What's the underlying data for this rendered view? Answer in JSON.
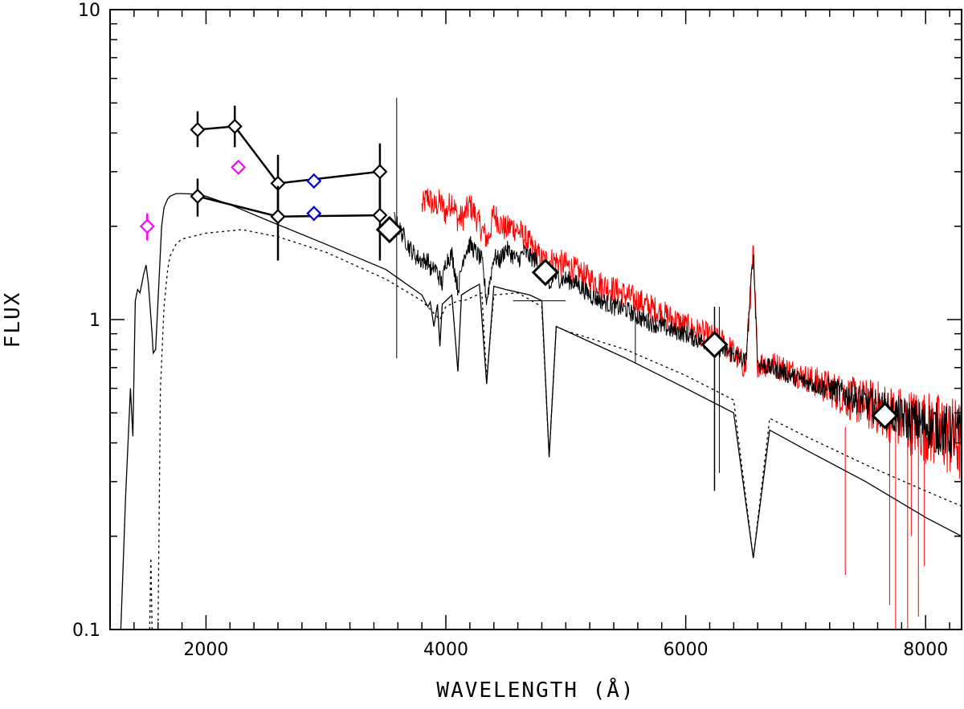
{
  "chart_data": {
    "type": "line",
    "title": "",
    "xlabel": "WAVELENGTH (Å)",
    "ylabel": "FLUX",
    "xlim": [
      1200,
      8300
    ],
    "ylim": [
      0.1,
      10
    ],
    "yscale": "log",
    "grid": false,
    "x_ticks": [
      2000,
      4000,
      6000,
      8000
    ],
    "y_ticks": [
      0.1,
      1,
      10
    ],
    "y_tick_labels": [
      "0.1",
      "1",
      "10"
    ],
    "colors": {
      "axis": "#000000",
      "black_series": "#000000",
      "red_series": "#ff0000",
      "magenta_points": "#ff00ff",
      "blue_points": "#0000cc"
    },
    "series": [
      {
        "name": "model-solid",
        "style": "solid",
        "x": [
          1290,
          1330,
          1370,
          1390,
          1410,
          1430,
          1450,
          1480,
          1500,
          1520,
          1550,
          1560,
          1580,
          1600,
          1630,
          1650,
          1680,
          1700,
          1750,
          1800,
          1900,
          2000,
          2200,
          2500,
          3000,
          3500,
          3800,
          3850,
          3870,
          3900,
          3930,
          3950,
          3970,
          4000,
          4050,
          4100,
          4130,
          4200,
          4280,
          4340,
          4400,
          4500,
          4700,
          4800,
          4861,
          4920,
          5000,
          5500,
          6000,
          6400,
          6563,
          6700,
          7000,
          7500,
          8000,
          8300
        ],
        "y": [
          0.1,
          0.27,
          0.6,
          0.42,
          1.15,
          1.25,
          1.22,
          1.4,
          1.5,
          1.3,
          0.9,
          0.78,
          0.8,
          1.15,
          2.0,
          2.3,
          2.45,
          2.5,
          2.55,
          2.55,
          2.54,
          2.5,
          2.35,
          2.1,
          1.75,
          1.45,
          1.2,
          1.1,
          1.14,
          0.95,
          1.12,
          0.82,
          1.12,
          1.15,
          1.2,
          0.68,
          1.2,
          1.25,
          1.3,
          0.62,
          1.28,
          1.25,
          1.2,
          1.15,
          0.36,
          0.95,
          0.92,
          0.75,
          0.6,
          0.5,
          0.17,
          0.44,
          0.38,
          0.3,
          0.23,
          0.2
        ]
      },
      {
        "name": "model-dotted",
        "style": "dotted",
        "x": [
          1530,
          1540,
          1550,
          1560,
          1575,
          1600,
          1620,
          1650,
          1680,
          1700,
          1750,
          1800,
          2000,
          2300,
          2600,
          3000,
          3500,
          3800,
          3950,
          4000,
          4100,
          4150,
          4300,
          4340,
          4400,
          4600,
          4800,
          4861,
          4920,
          5000,
          5500,
          6000,
          6400,
          6563,
          6700,
          7000,
          7500,
          8000,
          8300
        ],
        "y": [
          0.1,
          0.17,
          0.1,
          0.1,
          0.1,
          0.1,
          0.6,
          1.1,
          1.45,
          1.6,
          1.75,
          1.82,
          1.9,
          1.95,
          1.85,
          1.65,
          1.35,
          1.15,
          1.0,
          1.1,
          1.15,
          1.15,
          1.22,
          0.64,
          1.2,
          1.22,
          1.1,
          0.36,
          0.95,
          0.92,
          0.8,
          0.66,
          0.55,
          0.17,
          0.48,
          0.42,
          0.34,
          0.28,
          0.25
        ]
      },
      {
        "name": "spectrum-black",
        "style": "solid-noisy",
        "x": [
          3570,
          3600,
          3650,
          3700,
          3750,
          3800,
          3850,
          3889,
          3900,
          3970,
          4000,
          4050,
          4102,
          4150,
          4200,
          4250,
          4300,
          4340,
          4400,
          4450,
          4500,
          4550,
          4600,
          4650,
          4700,
          4750,
          4800,
          4850,
          4861,
          4900,
          4950,
          5000,
          5100,
          5200,
          5300,
          5400,
          5500,
          5600,
          5700,
          5800,
          5900,
          6000,
          6100,
          6200,
          6300,
          6400,
          6500,
          6563,
          6600,
          6700,
          6800,
          7000,
          7200,
          7400,
          7600,
          7800,
          8000,
          8200,
          8300
        ],
        "y": [
          2.1,
          2.0,
          1.85,
          1.7,
          1.6,
          1.55,
          1.55,
          1.4,
          1.5,
          1.3,
          1.55,
          1.62,
          1.25,
          1.62,
          1.75,
          1.65,
          1.55,
          1.15,
          1.6,
          1.55,
          1.7,
          1.62,
          1.55,
          1.65,
          1.6,
          1.55,
          1.45,
          1.35,
          1.2,
          1.4,
          1.35,
          1.35,
          1.3,
          1.2,
          1.15,
          1.1,
          1.08,
          1.02,
          0.98,
          0.95,
          0.92,
          0.9,
          0.86,
          0.84,
          0.8,
          0.77,
          0.73,
          1.65,
          0.72,
          0.7,
          0.68,
          0.63,
          0.6,
          0.56,
          0.52,
          0.48,
          0.46,
          0.43,
          0.42
        ]
      },
      {
        "name": "spectrum-red",
        "style": "solid-noisy",
        "x": [
          3800,
          3850,
          3900,
          3950,
          4000,
          4050,
          4100,
          4150,
          4200,
          4250,
          4300,
          4350,
          4400,
          4450,
          4500,
          4550,
          4600,
          4700,
          4800,
          4900,
          5000,
          5200,
          5400,
          5600,
          5800,
          6000,
          6200,
          6300,
          6400,
          6500,
          6563,
          6600,
          6700,
          6800,
          7000,
          7200,
          7400,
          7600,
          7800,
          8000,
          8200,
          8300
        ],
        "y": [
          2.3,
          2.5,
          2.3,
          2.4,
          2.2,
          2.45,
          2.1,
          2.15,
          2.35,
          2.15,
          1.95,
          1.8,
          2.2,
          2.05,
          1.95,
          2.0,
          1.95,
          1.75,
          1.55,
          1.55,
          1.5,
          1.35,
          1.25,
          1.15,
          1.05,
          0.95,
          0.88,
          0.85,
          0.78,
          0.7,
          1.65,
          0.72,
          0.72,
          0.7,
          0.65,
          0.6,
          0.55,
          0.52,
          0.48,
          0.45,
          0.42,
          0.4
        ]
      },
      {
        "name": "photometry-black-upper",
        "style": "line-markers",
        "x": [
          1930,
          2240,
          2600,
          3450
        ],
        "y": [
          4.1,
          4.2,
          2.75,
          3.0
        ],
        "yerr_low": [
          3.6,
          3.6,
          2.2,
          2.15
        ],
        "yerr_high": [
          4.7,
          4.9,
          3.4,
          3.7
        ]
      },
      {
        "name": "photometry-black-lower",
        "style": "line-markers",
        "x": [
          1930,
          2600,
          3450
        ],
        "y": [
          2.5,
          2.15,
          2.17
        ],
        "yerr_low": [
          2.15,
          1.55,
          1.55
        ],
        "yerr_high": [
          2.85,
          2.7,
          2.8
        ]
      },
      {
        "name": "photometry-magenta",
        "style": "markers",
        "x": [
          1510,
          2270
        ],
        "y": [
          2.0,
          3.1
        ],
        "yerr_low": [
          1.8,
          null
        ],
        "yerr_high": [
          2.2,
          null
        ]
      },
      {
        "name": "photometry-blue",
        "style": "markers",
        "x": [
          2900,
          2900
        ],
        "y": [
          2.8,
          2.2
        ]
      },
      {
        "name": "photometry-black-large",
        "style": "markers-large",
        "x": [
          3530,
          4830,
          6240,
          7660
        ],
        "y": [
          1.95,
          1.42,
          0.83,
          0.49
        ],
        "yerr_low": [
          null,
          1.15,
          0.28,
          null
        ],
        "yerr_high": [
          null,
          1.15,
          1.1,
          null
        ]
      }
    ]
  }
}
